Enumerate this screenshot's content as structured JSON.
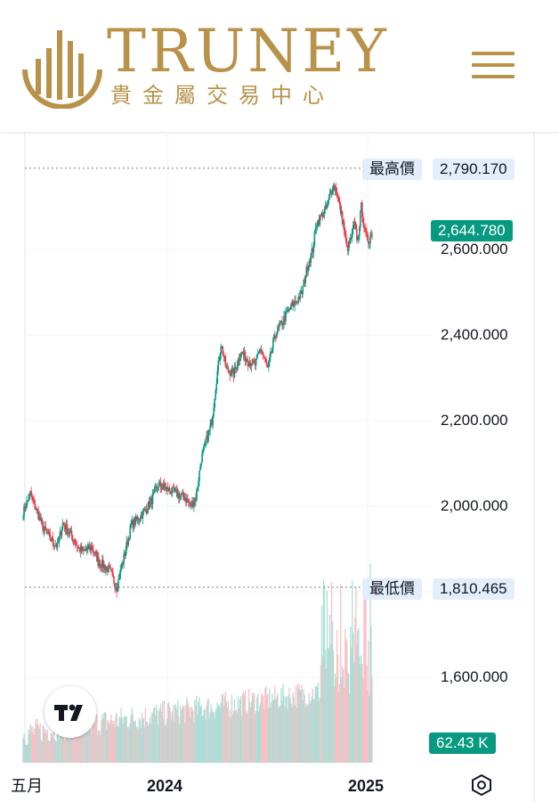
{
  "header": {
    "brand_name": "TRUNEY",
    "brand_subtitle": "貴金屬交易中心",
    "brand_color": "#b9924a"
  },
  "menu": {
    "icon": "hamburger-menu-icon"
  },
  "chart_data": {
    "type": "candlestick",
    "price_axis": {
      "ticks": [
        "2,600.000",
        "2,400.000",
        "2,200.000",
        "2,000.000",
        "1,600.000"
      ],
      "range": [
        1450,
        2880
      ]
    },
    "time_axis": {
      "labels": [
        "五月",
        "2024",
        "2025"
      ]
    },
    "highest": {
      "label": "最高價",
      "value": "2,790.170"
    },
    "lowest": {
      "label": "最低價",
      "value": "1,810.465"
    },
    "last_price": "2,644.780",
    "volume_label": "62.43 K",
    "colors": {
      "up": "#089981",
      "down": "#f23645",
      "grid": "#f0f3fa"
    },
    "anchors": [
      [
        0,
        1985
      ],
      [
        8,
        2030
      ],
      [
        13,
        2000
      ],
      [
        22,
        1950
      ],
      [
        30,
        1925
      ],
      [
        38,
        1905
      ],
      [
        44,
        1960
      ],
      [
        54,
        1930
      ],
      [
        62,
        1900
      ],
      [
        68,
        1895
      ],
      [
        76,
        1905
      ],
      [
        84,
        1870
      ],
      [
        96,
        1850
      ],
      [
        104,
        1810
      ],
      [
        112,
        1880
      ],
      [
        120,
        1955
      ],
      [
        134,
        1985
      ],
      [
        142,
        2010
      ],
      [
        150,
        2050
      ],
      [
        160,
        2040
      ],
      [
        170,
        2030
      ],
      [
        180,
        2020
      ],
      [
        186,
        2000
      ],
      [
        192,
        2020
      ],
      [
        198,
        2110
      ],
      [
        206,
        2170
      ],
      [
        210,
        2200
      ],
      [
        214,
        2280
      ],
      [
        220,
        2380
      ],
      [
        226,
        2320
      ],
      [
        234,
        2310
      ],
      [
        242,
        2360
      ],
      [
        250,
        2340
      ],
      [
        258,
        2330
      ],
      [
        264,
        2370
      ],
      [
        272,
        2320
      ],
      [
        280,
        2400
      ],
      [
        288,
        2430
      ],
      [
        296,
        2460
      ],
      [
        304,
        2480
      ],
      [
        310,
        2500
      ],
      [
        316,
        2560
      ],
      [
        322,
        2600
      ],
      [
        326,
        2660
      ],
      [
        332,
        2680
      ],
      [
        338,
        2700
      ],
      [
        344,
        2750
      ],
      [
        348,
        2740
      ],
      [
        352,
        2700
      ],
      [
        356,
        2660
      ],
      [
        360,
        2600
      ],
      [
        364,
        2620
      ],
      [
        368,
        2660
      ],
      [
        372,
        2620
      ],
      [
        376,
        2700
      ],
      [
        380,
        2640
      ],
      [
        384,
        2620
      ],
      [
        388,
        2640
      ]
    ],
    "volume": {
      "lo": 0,
      "hi": 100
    }
  }
}
